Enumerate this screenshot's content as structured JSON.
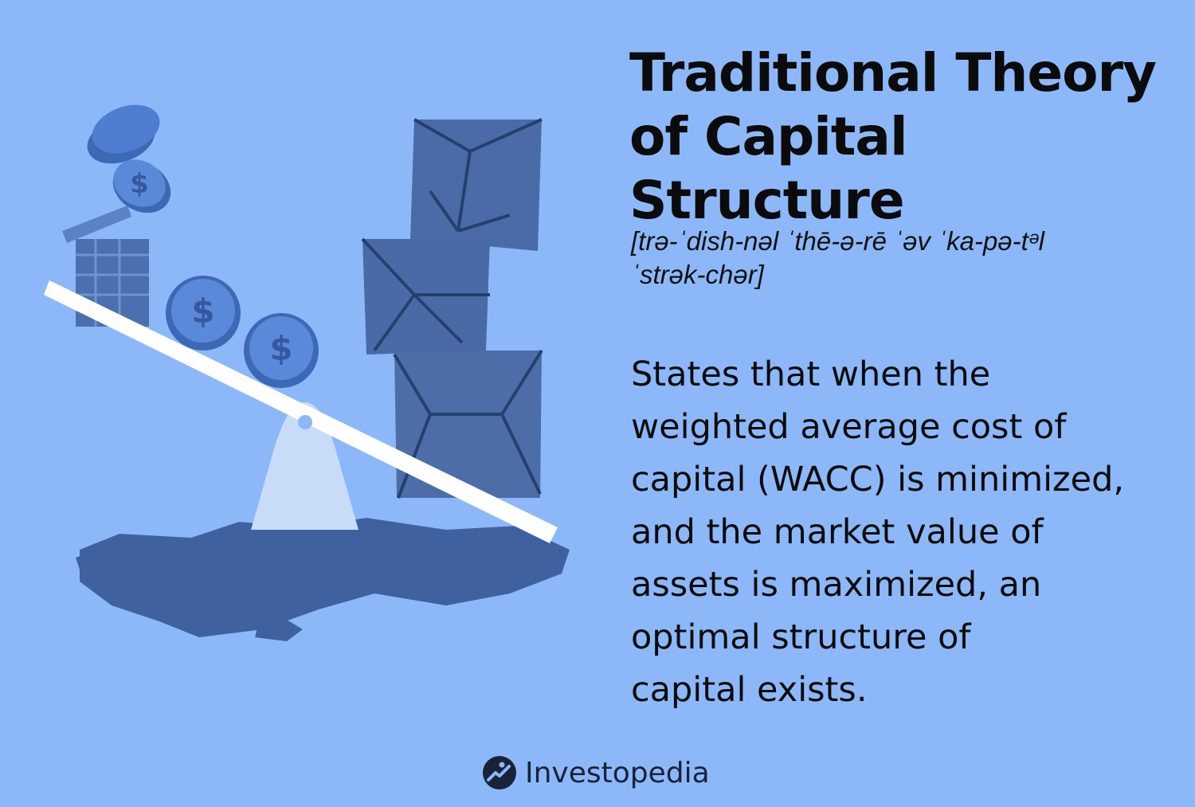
{
  "title_lines": [
    "Traditional Theory",
    "of Capital Structure"
  ],
  "pronunciation_lines": [
    "[trə-ˈdish-nəl ˈthē-ə-rē ˈəv ˈka-pə-tᵊl",
    "ˈstrək-chər]"
  ],
  "description_lines": [
    "States that when the",
    "weighted average cost of",
    "capital (WACC) is minimized,",
    "and the market value of",
    "assets is maximized, an",
    "optimal structure of",
    "capital exists."
  ],
  "brand": {
    "name": "Investopedia"
  },
  "icons": {
    "coin": "dollar-coin-icon",
    "logo": "investopedia-logo-icon"
  },
  "colors": {
    "background": "#8cb8f9",
    "illustration_dark": "#3d5f9c",
    "illustration_mid": "#4a6eaa",
    "coin": "#4f7dd0",
    "plank": "#ffffff",
    "text": "#0b0b0b"
  }
}
